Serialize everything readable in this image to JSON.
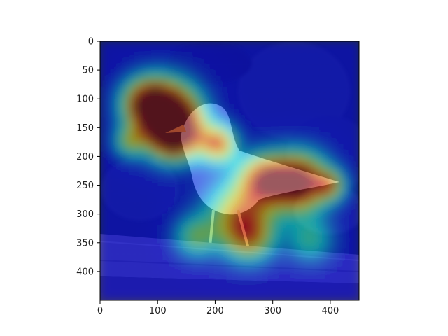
{
  "chart_data": {
    "type": "heatmap",
    "title": "",
    "xlabel": "",
    "ylabel": "",
    "xlim": [
      0,
      450
    ],
    "ylim": [
      450,
      0
    ],
    "xticks": [
      0,
      100,
      200,
      300,
      400
    ],
    "yticks": [
      0,
      50,
      100,
      150,
      200,
      250,
      300,
      350,
      400
    ],
    "colormap": "jet",
    "overlay_alpha": 0.5,
    "background_image": "photo of a seagull standing on a wooden railing with dark foliage behind",
    "hotspots": [
      {
        "x": 115,
        "y": 125,
        "intensity": 1.0,
        "spread": 38
      },
      {
        "x": 130,
        "y": 160,
        "intensity": 0.9,
        "spread": 30
      },
      {
        "x": 78,
        "y": 105,
        "intensity": 0.55,
        "spread": 28
      },
      {
        "x": 205,
        "y": 178,
        "intensity": 0.65,
        "spread": 22
      },
      {
        "x": 345,
        "y": 245,
        "intensity": 0.95,
        "spread": 34
      },
      {
        "x": 285,
        "y": 240,
        "intensity": 0.7,
        "spread": 30
      },
      {
        "x": 240,
        "y": 300,
        "intensity": 0.5,
        "spread": 40
      },
      {
        "x": 260,
        "y": 340,
        "intensity": 0.45,
        "spread": 30
      },
      {
        "x": 165,
        "y": 340,
        "intensity": 0.35,
        "spread": 25
      },
      {
        "x": 50,
        "y": 175,
        "intensity": 0.35,
        "spread": 18
      },
      {
        "x": 400,
        "y": 250,
        "intensity": 0.45,
        "spread": 18
      },
      {
        "x": 365,
        "y": 345,
        "intensity": 0.3,
        "spread": 28
      }
    ]
  }
}
